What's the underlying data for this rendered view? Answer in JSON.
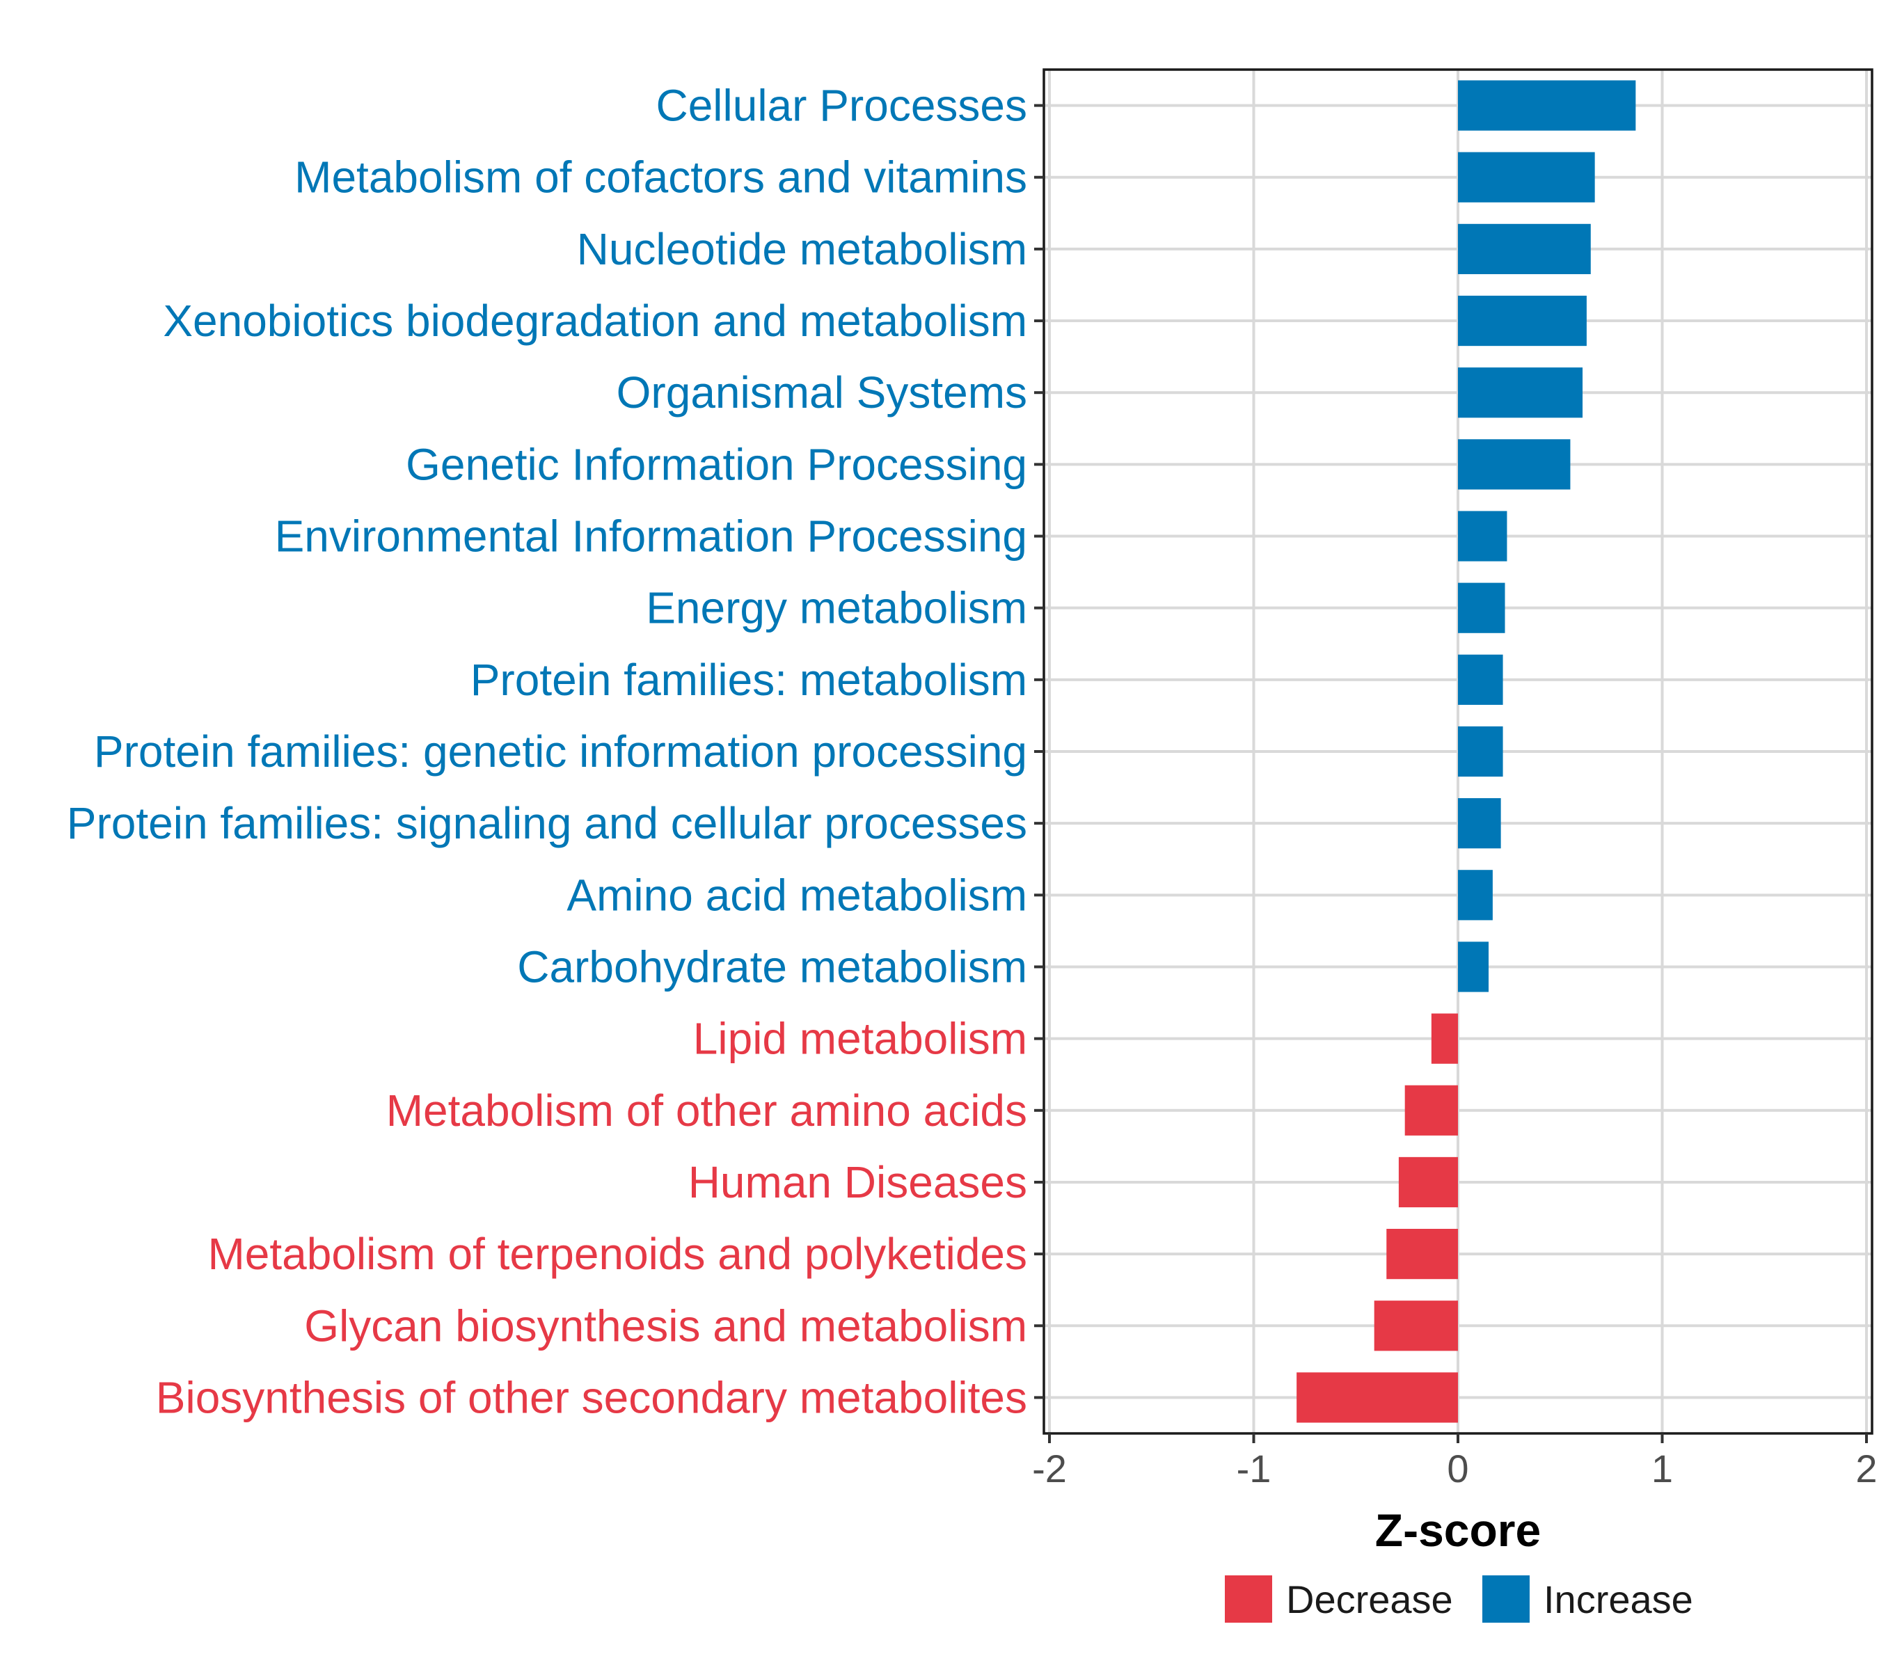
{
  "chart_data": {
    "type": "bar",
    "orientation": "horizontal",
    "xlabel": "Z-score",
    "xlim": [
      -2,
      2
    ],
    "xticks": [
      -2,
      -1,
      0,
      1,
      2
    ],
    "xtick_labels": [
      "-2",
      "-1",
      "0",
      "1",
      "2"
    ],
    "grid": true,
    "legend_position": "bottom",
    "colors": {
      "Decrease": "#e63946",
      "Increase": "#0077b6"
    },
    "legend": [
      {
        "name": "Decrease",
        "color": "#e63946"
      },
      {
        "name": "Increase",
        "color": "#0077b6"
      }
    ],
    "categories": [
      "Cellular Processes",
      "Metabolism of cofactors and vitamins",
      "Nucleotide metabolism",
      "Xenobiotics biodegradation and metabolism",
      "Organismal Systems",
      "Genetic Information Processing",
      "Environmental Information Processing",
      "Energy metabolism",
      "Protein families: metabolism",
      "Protein families: genetic information processing",
      "Protein families: signaling and cellular processes",
      "Amino acid metabolism",
      "Carbohydrate metabolism",
      "Lipid metabolism",
      "Metabolism of other amino acids",
      "Human Diseases",
      "Metabolism of terpenoids and polyketides",
      "Glycan biosynthesis and metabolism",
      "Biosynthesis of other secondary metabolites"
    ],
    "values": [
      0.87,
      0.67,
      0.65,
      0.63,
      0.61,
      0.55,
      0.24,
      0.23,
      0.22,
      0.22,
      0.21,
      0.17,
      0.15,
      -0.13,
      -0.26,
      -0.29,
      -0.35,
      -0.41,
      -0.79
    ],
    "groups": [
      "Increase",
      "Increase",
      "Increase",
      "Increase",
      "Increase",
      "Increase",
      "Increase",
      "Increase",
      "Increase",
      "Increase",
      "Increase",
      "Increase",
      "Increase",
      "Decrease",
      "Decrease",
      "Decrease",
      "Decrease",
      "Decrease",
      "Decrease"
    ]
  }
}
